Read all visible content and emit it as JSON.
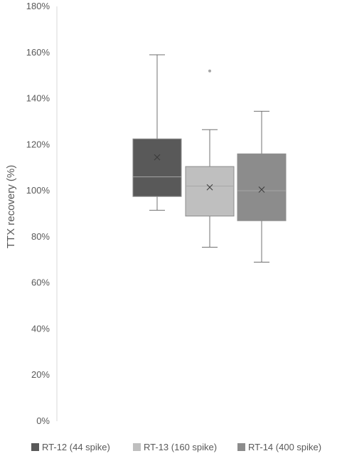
{
  "chart_data": {
    "type": "box",
    "title": "",
    "xlabel": "",
    "ylabel": "TTX recovery (%)",
    "ylim": [
      0,
      180
    ],
    "yticks": [
      "0%",
      "20%",
      "40%",
      "60%",
      "80%",
      "100%",
      "120%",
      "140%",
      "160%",
      "180%"
    ],
    "grid": false,
    "legend_position": "bottom",
    "series": [
      {
        "name": "RT-12 (44 spike)",
        "color": "#595959",
        "min": 91.5,
        "q1": 97.5,
        "median": 106,
        "q3": 122.5,
        "max": 159,
        "mean": 114.5,
        "outliers": []
      },
      {
        "name": "RT-13 (160 spike)",
        "color": "#bfbfbf",
        "min": 75.5,
        "q1": 89,
        "median": 102,
        "q3": 110.5,
        "max": 126.5,
        "mean": 101.5,
        "outliers": [
          152
        ]
      },
      {
        "name": "RT-14 (400 spike)",
        "color": "#8c8c8c",
        "min": 69,
        "q1": 87,
        "median": 100,
        "q3": 116,
        "max": 134.5,
        "mean": 100.5,
        "outliers": []
      }
    ]
  }
}
